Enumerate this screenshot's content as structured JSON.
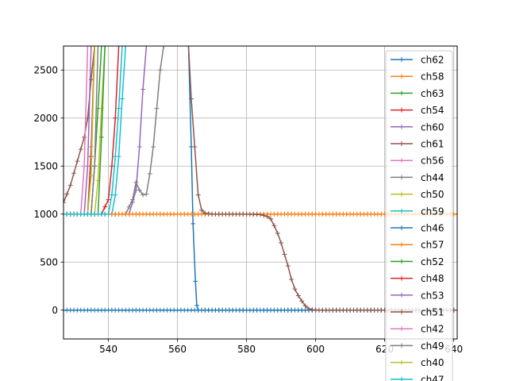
{
  "chart_data": {
    "type": "line",
    "title": "",
    "xlabel": "",
    "ylabel": "",
    "xlim": [
      527,
      641
    ],
    "ylim": [
      -300,
      2750
    ],
    "xticks": [
      540,
      560,
      580,
      600,
      620,
      640
    ],
    "yticks": [
      0,
      500,
      1000,
      1500,
      2000,
      2500
    ],
    "grid": true,
    "legend_position": "right",
    "series": [
      {
        "name": "ch62",
        "color": "#1f77b4",
        "values": [
          [
            527,
            0
          ],
          [
            540,
            0
          ],
          [
            560,
            0
          ],
          [
            580,
            0
          ],
          [
            600,
            0
          ],
          [
            620,
            0
          ],
          [
            641,
            0
          ]
        ]
      },
      {
        "name": "ch58",
        "color": "#ff7f0e",
        "values": [
          [
            527,
            1000
          ],
          [
            545,
            1000
          ],
          [
            565,
            1000
          ],
          [
            585,
            1000
          ],
          [
            605,
            1000
          ],
          [
            625,
            1000
          ],
          [
            641,
            1000
          ]
        ]
      },
      {
        "name": "ch63",
        "color": "#2ca02c",
        "values": [
          [
            527,
            1000
          ],
          [
            535,
            1000
          ],
          [
            536,
            1500
          ],
          [
            537,
            2100
          ],
          [
            538,
            2750
          ]
        ]
      },
      {
        "name": "ch54",
        "color": "#d62728",
        "values": [
          [
            527,
            1000
          ],
          [
            538,
            1000
          ],
          [
            540,
            1150
          ],
          [
            541,
            1500
          ],
          [
            542,
            2000
          ],
          [
            543,
            2750
          ]
        ]
      },
      {
        "name": "ch60",
        "color": "#9467bd",
        "values": [
          [
            527,
            1000
          ],
          [
            546,
            1000
          ],
          [
            548,
            1250
          ],
          [
            549,
            1700
          ],
          [
            550,
            2300
          ],
          [
            551,
            2750
          ]
        ]
      },
      {
        "name": "ch61",
        "color": "#8c564b",
        "values": [
          [
            527,
            1120
          ],
          [
            529,
            1300
          ],
          [
            531,
            1550
          ],
          [
            533,
            1800
          ],
          [
            534,
            2000
          ],
          [
            535,
            2400
          ],
          [
            536,
            2750
          ]
        ]
      },
      {
        "name": "ch56",
        "color": "#e377c2",
        "values": [
          [
            527,
            1000
          ],
          [
            534,
            1000
          ],
          [
            535,
            1700
          ],
          [
            536,
            2750
          ]
        ]
      },
      {
        "name": "ch44",
        "color": "#7f7f7f",
        "values": [
          [
            527,
            1000
          ],
          [
            545,
            1000
          ],
          [
            547,
            1150
          ],
          [
            548,
            1330
          ],
          [
            549,
            1250
          ],
          [
            550,
            1200
          ],
          [
            551,
            1210
          ],
          [
            552,
            1420
          ],
          [
            553,
            1700
          ],
          [
            554,
            2100
          ],
          [
            555,
            2500
          ],
          [
            556,
            2750
          ]
        ]
      },
      {
        "name": "ch50",
        "color": "#bcbd22",
        "values": [
          [
            527,
            1000
          ],
          [
            536,
            1000
          ],
          [
            537,
            1350
          ],
          [
            538,
            2100
          ],
          [
            539,
            2750
          ]
        ]
      },
      {
        "name": "ch59",
        "color": "#17becf",
        "values": [
          [
            527,
            1000
          ],
          [
            541,
            1000
          ],
          [
            542,
            1200
          ],
          [
            543,
            1600
          ],
          [
            544,
            2200
          ],
          [
            545,
            2750
          ]
        ]
      },
      {
        "name": "ch46",
        "color": "#1f77b4",
        "values": [
          [
            563.2,
            2750
          ],
          [
            564,
            1700
          ],
          [
            564.5,
            900
          ],
          [
            565.2,
            300
          ],
          [
            565.6,
            50
          ],
          [
            566,
            0
          ],
          [
            570,
            0
          ],
          [
            580,
            0
          ],
          [
            600,
            0
          ],
          [
            620,
            0
          ],
          [
            641,
            0
          ]
        ]
      },
      {
        "name": "ch57",
        "color": "#ff7f0e",
        "values": [
          [
            527,
            1000
          ],
          [
            540,
            1000
          ],
          [
            560,
            1000
          ],
          [
            580,
            1000
          ],
          [
            600,
            1000
          ],
          [
            620,
            1000
          ],
          [
            641,
            1000
          ]
        ]
      },
      {
        "name": "ch52",
        "color": "#2ca02c",
        "values": [
          [
            527,
            1000
          ],
          [
            537,
            1000
          ],
          [
            538,
            1800
          ],
          [
            539,
            2750
          ]
        ]
      },
      {
        "name": "ch48",
        "color": "#d62728",
        "values": [
          [
            527,
            1000
          ],
          [
            534,
            1000
          ],
          [
            535,
            1600
          ],
          [
            536,
            2750
          ]
        ]
      },
      {
        "name": "ch53",
        "color": "#9467bd",
        "values": [
          [
            527,
            1000
          ],
          [
            533,
            1000
          ],
          [
            534,
            1500
          ],
          [
            535,
            2750
          ]
        ]
      },
      {
        "name": "ch51",
        "color": "#8c564b",
        "values": [
          [
            563.2,
            2750
          ],
          [
            564,
            2200
          ],
          [
            565,
            1700
          ],
          [
            566,
            1200
          ],
          [
            567,
            1040
          ],
          [
            568,
            1010
          ],
          [
            570,
            1000
          ],
          [
            575,
            1000
          ],
          [
            580,
            1000
          ],
          [
            584,
            995
          ],
          [
            586,
            975
          ],
          [
            587,
            950
          ],
          [
            588,
            880
          ],
          [
            589,
            800
          ],
          [
            590,
            700
          ],
          [
            591,
            580
          ],
          [
            592,
            460
          ],
          [
            593,
            320
          ],
          [
            594,
            220
          ],
          [
            595,
            150
          ],
          [
            596,
            95
          ],
          [
            597,
            45
          ],
          [
            598,
            15
          ],
          [
            599,
            5
          ],
          [
            601,
            0
          ],
          [
            610,
            0
          ],
          [
            620,
            0
          ],
          [
            641,
            0
          ]
        ]
      },
      {
        "name": "ch42",
        "color": "#e377c2",
        "values": [
          [
            527,
            1000
          ],
          [
            532,
            1000
          ],
          [
            533,
            1500
          ],
          [
            534,
            2750
          ]
        ]
      },
      {
        "name": "ch49",
        "color": "#7f7f7f",
        "values": [
          [
            527,
            1000
          ],
          [
            535,
            1000
          ],
          [
            536,
            1500
          ],
          [
            537,
            2750
          ]
        ]
      },
      {
        "name": "ch40",
        "color": "#bcbd22",
        "values": [
          [
            527,
            1000
          ],
          [
            534,
            1000
          ],
          [
            535,
            1400
          ],
          [
            536,
            2750
          ]
        ]
      },
      {
        "name": "ch47",
        "color": "#17becf",
        "values": [
          [
            527,
            1000
          ],
          [
            540,
            1000
          ],
          [
            541,
            1200
          ],
          [
            542,
            1600
          ],
          [
            543,
            2100
          ],
          [
            544,
            2750
          ]
        ]
      }
    ]
  }
}
